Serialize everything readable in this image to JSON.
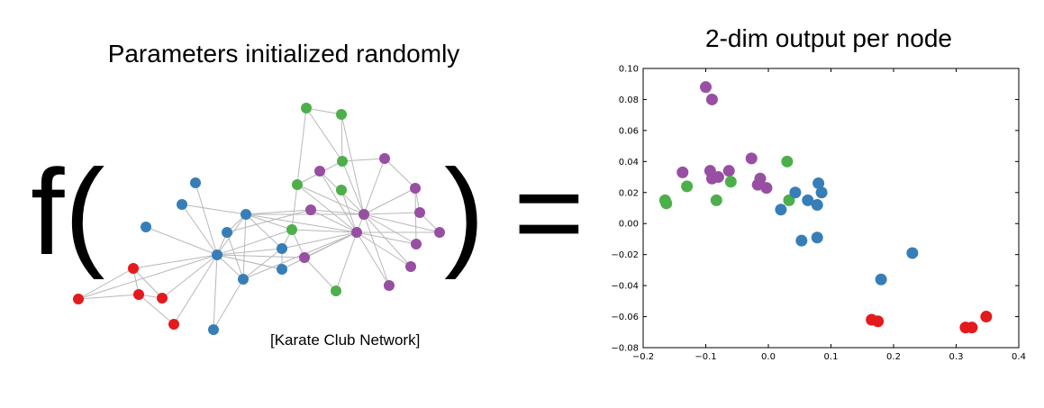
{
  "diagram": {
    "f_label": "f(",
    "close_paren": ")",
    "equals": "=",
    "left_title": "Parameters initialized randomly",
    "right_title": "2-dim output per node",
    "caption": "[Karate Club Network]"
  },
  "colors": {
    "red": "#e41a1c",
    "blue": "#377eb8",
    "green": "#4daf4a",
    "purple": "#984ea3",
    "edge": "#b8b8b8"
  },
  "chart_data": {
    "type": "scatter",
    "title": "2-dim output per node",
    "xlabel": "",
    "ylabel": "",
    "xlim": [
      -0.2,
      0.4
    ],
    "ylim": [
      -0.08,
      0.1
    ],
    "xticks": [
      "−0.2",
      "−0.1",
      "0.0",
      "0.1",
      "0.2",
      "0.3",
      "0.4"
    ],
    "yticks": [
      "0.10",
      "0.08",
      "0.06",
      "0.04",
      "0.02",
      "0.00",
      "−0.02",
      "−0.04",
      "−0.06",
      "−0.08"
    ],
    "grid": false,
    "series": [
      {
        "color": "purple",
        "points": [
          [
            -0.1,
            0.088
          ],
          [
            -0.09,
            0.08
          ],
          [
            -0.137,
            0.033
          ],
          [
            -0.093,
            0.034
          ],
          [
            -0.09,
            0.029
          ],
          [
            -0.08,
            0.03
          ],
          [
            -0.063,
            0.034
          ],
          [
            -0.027,
            0.042
          ],
          [
            -0.017,
            0.025
          ],
          [
            -0.013,
            0.029
          ],
          [
            -0.003,
            0.023
          ]
        ]
      },
      {
        "color": "green",
        "points": [
          [
            -0.165,
            0.015
          ],
          [
            -0.163,
            0.013
          ],
          [
            -0.13,
            0.024
          ],
          [
            -0.083,
            0.015
          ],
          [
            -0.06,
            0.027
          ],
          [
            0.03,
            0.04
          ],
          [
            0.033,
            0.015
          ]
        ]
      },
      {
        "color": "blue",
        "points": [
          [
            0.02,
            0.009
          ],
          [
            0.043,
            0.02
          ],
          [
            0.053,
            -0.011
          ],
          [
            0.063,
            0.015
          ],
          [
            0.078,
            0.012
          ],
          [
            0.078,
            -0.009
          ],
          [
            0.08,
            0.026
          ],
          [
            0.085,
            0.02
          ],
          [
            0.18,
            -0.036
          ],
          [
            0.23,
            -0.019
          ]
        ]
      },
      {
        "color": "red",
        "points": [
          [
            0.165,
            -0.062
          ],
          [
            0.175,
            -0.063
          ],
          [
            0.315,
            -0.067
          ],
          [
            0.325,
            -0.067
          ],
          [
            0.348,
            -0.06
          ]
        ]
      }
    ]
  }
}
